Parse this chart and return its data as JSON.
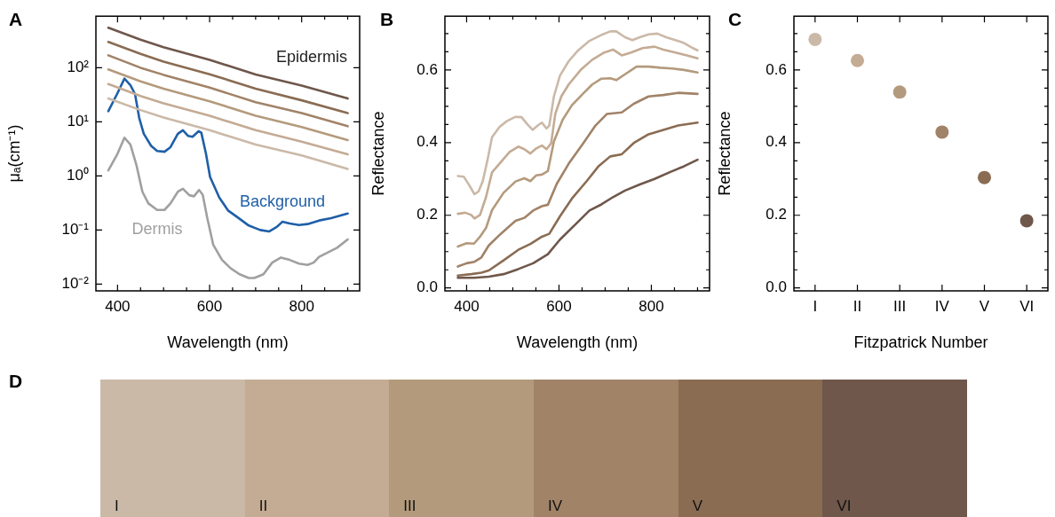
{
  "chart_data": [
    {
      "type": "line",
      "title": "A",
      "xlabel": "Wavelength (nm)",
      "ylabel": "μₐ(cm⁻¹)",
      "log": "y",
      "marker": "none",
      "grid": false,
      "legend": false,
      "xlim": [
        353,
        926
      ],
      "xticks": [
        400,
        {
          "value": 450,
          "label": null
        },
        {
          "value": 500,
          "label": null
        },
        {
          "value": 550,
          "label": null
        },
        600,
        {
          "value": 650,
          "label": null
        },
        {
          "value": 700,
          "label": null
        },
        {
          "value": 750,
          "label": null
        },
        800,
        {
          "value": 850,
          "label": null
        },
        {
          "value": 900,
          "label": null
        }
      ],
      "ylim": [
        0.0075,
        900
      ],
      "yticks": [
        {
          "value": 0.01,
          "label": "10⁻²"
        },
        {
          "value": 0.1,
          "label": "10⁻¹"
        },
        {
          "value": 1,
          "label": "10⁰"
        },
        {
          "value": 10,
          "label": "10¹"
        },
        {
          "value": 100,
          "label": "10²"
        }
      ],
      "annotations": [
        "Epidermis"
      ],
      "series": [
        {
          "color": "#cbb9a8",
          "x": [
            380,
            450,
            500,
            600,
            700,
            800,
            900
          ],
          "values": [
            27,
            16.5,
            12,
            7,
            3.8,
            2.4,
            1.35
          ]
        },
        {
          "color": "#c4ab94",
          "x": [
            380,
            450,
            500,
            600,
            700,
            800,
            900
          ],
          "values": [
            50,
            30,
            22,
            13,
            7,
            4.3,
            2.5
          ]
        },
        {
          "color": "#b49a7c",
          "x": [
            380,
            450,
            500,
            600,
            700,
            800,
            900
          ],
          "values": [
            93,
            56,
            41,
            24,
            13,
            8,
            4.6
          ]
        },
        {
          "color": "#a18368",
          "x": [
            380,
            450,
            500,
            600,
            700,
            800,
            900
          ],
          "values": [
            170,
            100,
            74,
            43,
            23,
            14.5,
            8.3
          ]
        },
        {
          "color": "#8a6c53",
          "x": [
            380,
            450,
            500,
            600,
            700,
            800,
            900
          ],
          "values": [
            300,
            180,
            130,
            76,
            41,
            25,
            14.5
          ]
        },
        {
          "color": "#6f574b",
          "x": [
            380,
            450,
            500,
            600,
            700,
            800,
            900
          ],
          "values": [
            550,
            330,
            240,
            140,
            75,
            47,
            27
          ]
        },
        {
          "name": "Background",
          "color": "#1f5fa8",
          "x": [
            380,
            399,
            415,
            428,
            438,
            447,
            457,
            473,
            486,
            502,
            515,
            531,
            542,
            553,
            563,
            576,
            582,
            592,
            601,
            621,
            640,
            659,
            685,
            710,
            729,
            746,
            758,
            774,
            794,
            813,
            838,
            864,
            900
          ],
          "values": [
            15.7,
            32.7,
            63,
            47.6,
            32.7,
            11.9,
            6.0,
            3.6,
            2.9,
            2.8,
            3.4,
            6.0,
            7.0,
            5.5,
            5.3,
            6.7,
            6.3,
            2.6,
            0.96,
            0.4,
            0.23,
            0.176,
            0.121,
            0.1,
            0.094,
            0.114,
            0.142,
            0.132,
            0.124,
            0.129,
            0.15,
            0.166,
            0.202
          ]
        },
        {
          "name": "Dermis",
          "color": "#a0a0a0",
          "x": [
            380,
            399,
            415,
            428,
            441,
            454,
            467,
            486,
            502,
            515,
            531,
            542,
            556,
            566,
            577,
            585,
            595,
            608,
            627,
            646,
            665,
            685,
            697,
            717,
            736,
            755,
            774,
            794,
            813,
            826,
            838,
            858,
            877,
            900
          ],
          "values": [
            1.27,
            2.47,
            5.1,
            3.8,
            1.59,
            0.51,
            0.31,
            0.235,
            0.235,
            0.31,
            0.51,
            0.58,
            0.44,
            0.42,
            0.55,
            0.45,
            0.166,
            0.053,
            0.028,
            0.0195,
            0.0152,
            0.013,
            0.013,
            0.0152,
            0.025,
            0.031,
            0.028,
            0.024,
            0.0226,
            0.025,
            0.032,
            0.039,
            0.047,
            0.067
          ]
        }
      ]
    },
    {
      "type": "line",
      "title": "B",
      "xlabel": "Wavelength (nm)",
      "ylabel": "Reflectance",
      "marker": "none",
      "grid": false,
      "legend": false,
      "xlim": [
        353,
        926
      ],
      "xticks": [
        400,
        {
          "value": 450,
          "label": null
        },
        {
          "value": 500,
          "label": null
        },
        {
          "value": 550,
          "label": null
        },
        600,
        {
          "value": 650,
          "label": null
        },
        {
          "value": 700,
          "label": null
        },
        {
          "value": 750,
          "label": null
        },
        800,
        {
          "value": 850,
          "label": null
        },
        {
          "value": 900,
          "label": null
        }
      ],
      "ylim": [
        -0.008,
        0.748
      ],
      "yticks": [
        {
          "value": 0,
          "label": "0.0"
        },
        {
          "value": 0.05,
          "label": null
        },
        {
          "value": 0.1,
          "label": null
        },
        {
          "value": 0.15,
          "label": null
        },
        {
          "value": 0.2,
          "label": "0.2"
        },
        {
          "value": 0.25,
          "label": null
        },
        {
          "value": 0.3,
          "label": null
        },
        {
          "value": 0.35,
          "label": null
        },
        {
          "value": 0.4,
          "label": "0.4"
        },
        {
          "value": 0.45,
          "label": null
        },
        {
          "value": 0.5,
          "label": null
        },
        {
          "value": 0.55,
          "label": null
        },
        {
          "value": 0.6,
          "label": "0.6"
        },
        {
          "value": 0.65,
          "label": null
        },
        {
          "value": 0.7,
          "label": null
        }
      ],
      "series": [
        {
          "color": "#cbb9a8",
          "x": [
            381,
            394,
            406,
            417,
            426,
            435,
            445,
            455,
            471,
            487,
            506,
            519,
            531,
            543,
            554,
            563,
            573,
            579,
            589,
            602,
            621,
            640,
            666,
            695,
            711,
            724,
            743,
            759,
            775,
            794,
            813,
            832,
            852,
            871,
            890,
            900
          ],
          "values": [
            0.308,
            0.306,
            0.282,
            0.258,
            0.266,
            0.294,
            0.351,
            0.415,
            0.443,
            0.459,
            0.471,
            0.47,
            0.451,
            0.435,
            0.447,
            0.455,
            0.439,
            0.447,
            0.527,
            0.584,
            0.624,
            0.652,
            0.68,
            0.698,
            0.706,
            0.706,
            0.69,
            0.682,
            0.69,
            0.698,
            0.7,
            0.69,
            0.682,
            0.674,
            0.66,
            0.654
          ]
        },
        {
          "color": "#c4ab94",
          "x": [
            381,
            397,
            410,
            417,
            429,
            442,
            455,
            474,
            493,
            512,
            525,
            538,
            551,
            563,
            573,
            583,
            592,
            605,
            621,
            647,
            672,
            698,
            717,
            736,
            756,
            781,
            807,
            826,
            852,
            877,
            900
          ],
          "values": [
            0.204,
            0.207,
            0.201,
            0.191,
            0.201,
            0.25,
            0.318,
            0.346,
            0.374,
            0.389,
            0.382,
            0.37,
            0.384,
            0.392,
            0.382,
            0.398,
            0.479,
            0.527,
            0.56,
            0.6,
            0.628,
            0.648,
            0.656,
            0.64,
            0.648,
            0.66,
            0.664,
            0.656,
            0.648,
            0.64,
            0.632
          ]
        },
        {
          "color": "#b49a7c",
          "x": [
            381,
            400,
            416,
            429,
            442,
            455,
            480,
            506,
            525,
            538,
            551,
            563,
            576,
            589,
            608,
            628,
            653,
            672,
            692,
            711,
            724,
            743,
            768,
            794,
            820,
            845,
            871,
            900
          ],
          "values": [
            0.114,
            0.123,
            0.122,
            0.141,
            0.165,
            0.214,
            0.262,
            0.293,
            0.302,
            0.294,
            0.31,
            0.312,
            0.322,
            0.403,
            0.463,
            0.503,
            0.536,
            0.56,
            0.576,
            0.577,
            0.572,
            0.588,
            0.609,
            0.609,
            0.606,
            0.604,
            0.6,
            0.593
          ]
        },
        {
          "color": "#a18368",
          "x": [
            381,
            400,
            417,
            432,
            448,
            474,
            506,
            525,
            544,
            563,
            576,
            595,
            621,
            653,
            679,
            704,
            736,
            762,
            794,
            826,
            858,
            900
          ],
          "values": [
            0.059,
            0.068,
            0.072,
            0.084,
            0.117,
            0.149,
            0.185,
            0.193,
            0.213,
            0.225,
            0.229,
            0.286,
            0.342,
            0.399,
            0.447,
            0.479,
            0.483,
            0.507,
            0.527,
            0.531,
            0.537,
            0.534
          ]
        },
        {
          "color": "#8a6c53",
          "x": [
            381,
            410,
            432,
            448,
            480,
            512,
            538,
            563,
            579,
            602,
            628,
            660,
            685,
            711,
            736,
            762,
            794,
            826,
            858,
            900
          ],
          "values": [
            0.034,
            0.038,
            0.042,
            0.048,
            0.076,
            0.105,
            0.121,
            0.141,
            0.149,
            0.197,
            0.246,
            0.294,
            0.334,
            0.362,
            0.368,
            0.399,
            0.423,
            0.435,
            0.447,
            0.455
          ]
        },
        {
          "color": "#6f574b",
          "x": [
            381,
            416,
            448,
            480,
            512,
            544,
            576,
            602,
            634,
            666,
            692,
            717,
            743,
            775,
            807,
            839,
            871,
            900
          ],
          "values": [
            0.028,
            0.028,
            0.031,
            0.038,
            0.052,
            0.068,
            0.093,
            0.133,
            0.173,
            0.213,
            0.23,
            0.25,
            0.268,
            0.285,
            0.3,
            0.318,
            0.335,
            0.353
          ]
        }
      ]
    },
    {
      "type": "scatter",
      "title": "C",
      "xlabel": "Fitzpatrick Number",
      "ylabel": "Reflectance",
      "marker": "circle",
      "grid": false,
      "legend": false,
      "categories": [
        "I",
        "II",
        "III",
        "IV",
        "V",
        "VI"
      ],
      "values": [
        0.684,
        0.626,
        0.539,
        0.429,
        0.304,
        0.185
      ],
      "colors": [
        "#cbb9a8",
        "#c4ab94",
        "#b49a7c",
        "#a18368",
        "#8a6c53",
        "#6f574b"
      ],
      "ylim": [
        -0.008,
        0.748
      ],
      "yticks": [
        {
          "value": 0,
          "label": "0.0"
        },
        {
          "value": 0.05,
          "label": null
        },
        {
          "value": 0.1,
          "label": null
        },
        {
          "value": 0.15,
          "label": null
        },
        {
          "value": 0.2,
          "label": "0.2"
        },
        {
          "value": 0.25,
          "label": null
        },
        {
          "value": 0.3,
          "label": null
        },
        {
          "value": 0.35,
          "label": null
        },
        {
          "value": 0.4,
          "label": "0.4"
        },
        {
          "value": 0.45,
          "label": null
        },
        {
          "value": 0.5,
          "label": null
        },
        {
          "value": 0.55,
          "label": null
        },
        {
          "value": 0.6,
          "label": "0.6"
        },
        {
          "value": 0.65,
          "label": null
        },
        {
          "value": 0.7,
          "label": null
        }
      ]
    },
    {
      "type": "other",
      "title": "D",
      "categories": [
        "I",
        "II",
        "III",
        "IV",
        "V",
        "VI"
      ],
      "colors": [
        "#cbb9a8",
        "#c4ab94",
        "#b49a7c",
        "#a18368",
        "#8a6c53",
        "#6f574b"
      ]
    }
  ]
}
